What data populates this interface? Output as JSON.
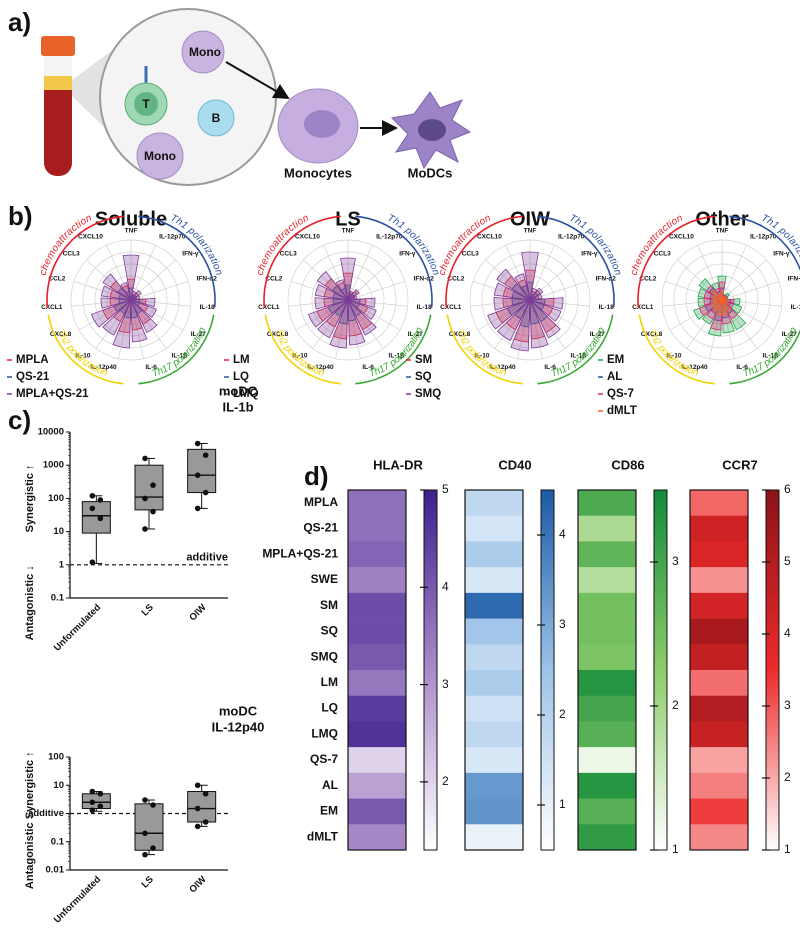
{
  "panel_labels": [
    "a)",
    "b)",
    "c)",
    "d)"
  ],
  "diagram": {
    "cells": [
      "T",
      "Mono",
      "B",
      "Mono"
    ],
    "monocytes": "Monocytes",
    "modcs": "MoDCs"
  },
  "chart_data": [
    {
      "type": "rose",
      "title": "Soluble",
      "categories": [
        "TNF",
        "IL-12p70",
        "IFN-γ",
        "IFN-α2",
        "IL-18",
        "IL-27",
        "IL-1β",
        "IL-6",
        "IL-12p40",
        "IL-10",
        "CXCL8",
        "CXCL1",
        "CCL2",
        "CCL3",
        "CXCL10"
      ],
      "groups": [
        {
          "label": "chemoattraction",
          "color": "#e8202a"
        },
        {
          "label": "Th1 polarization",
          "color": "#2a4fa0"
        },
        {
          "label": "Th17 polarization",
          "color": "#3aaa35"
        },
        {
          "label": "Th2 polarization",
          "color": "#f2d200"
        }
      ],
      "rlim": [
        0,
        100
      ],
      "series": [
        {
          "name": "MPLA",
          "color": "#e8202a",
          "values": [
            35,
            10,
            15,
            10,
            25,
            30,
            45,
            50,
            55,
            40,
            50,
            35,
            35,
            40,
            25
          ]
        },
        {
          "name": "QS-21",
          "color": "#2a4fa0",
          "values": [
            20,
            8,
            10,
            8,
            15,
            15,
            25,
            30,
            30,
            25,
            30,
            20,
            20,
            25,
            15
          ]
        },
        {
          "name": "MPLA+QS-21",
          "color": "#7d3c98",
          "values": [
            75,
            15,
            20,
            15,
            40,
            45,
            60,
            70,
            80,
            65,
            70,
            50,
            50,
            55,
            30
          ]
        }
      ]
    },
    {
      "type": "rose",
      "title": "LS",
      "categories": [
        "TNF",
        "IL-12p70",
        "IFN-γ",
        "IFN-α2",
        "IL-18",
        "IL-27",
        "IL-1β",
        "IL-6",
        "IL-12p40",
        "IL-10",
        "CXCL8",
        "CXCL1",
        "CCL2",
        "CCL3",
        "CXCL10"
      ],
      "groups": [
        {
          "label": "chemoattraction",
          "color": "#e8202a"
        },
        {
          "label": "Th1 polarization",
          "color": "#2a4fa0"
        },
        {
          "label": "Th17 polarization",
          "color": "#3aaa35"
        },
        {
          "label": "Th2 polarization",
          "color": "#f2d200"
        }
      ],
      "rlim": [
        0,
        100
      ],
      "series": [
        {
          "name": "LM",
          "color": "#e8202a",
          "values": [
            45,
            12,
            18,
            12,
            30,
            35,
            55,
            60,
            65,
            50,
            55,
            40,
            40,
            45,
            30
          ]
        },
        {
          "name": "LQ",
          "color": "#2a4fa0",
          "values": [
            25,
            10,
            12,
            10,
            20,
            20,
            30,
            35,
            40,
            30,
            35,
            25,
            25,
            30,
            20
          ]
        },
        {
          "name": "LMQ",
          "color": "#7d3c98",
          "values": [
            70,
            15,
            22,
            15,
            45,
            50,
            65,
            75,
            80,
            70,
            70,
            55,
            55,
            60,
            35
          ]
        }
      ]
    },
    {
      "type": "rose",
      "title": "OIW",
      "categories": [
        "TNF",
        "IL-12p70",
        "IFN-γ",
        "IFN-α2",
        "IL-18",
        "IL-27",
        "IL-1β",
        "IL-6",
        "IL-12p40",
        "IL-10",
        "CXCL8",
        "CXCL1",
        "CCL2",
        "CCL3",
        "CXCL10"
      ],
      "groups": [
        {
          "label": "chemoattraction",
          "color": "#e8202a"
        },
        {
          "label": "Th1 polarization",
          "color": "#2a4fa0"
        },
        {
          "label": "Th17 polarization",
          "color": "#3aaa35"
        },
        {
          "label": "Th2 polarization",
          "color": "#f2d200"
        }
      ],
      "rlim": [
        0,
        100
      ],
      "series": [
        {
          "name": "SM",
          "color": "#e8202a",
          "values": [
            50,
            15,
            20,
            15,
            40,
            40,
            60,
            65,
            70,
            55,
            60,
            45,
            45,
            50,
            35
          ]
        },
        {
          "name": "SQ",
          "color": "#2a4fa0",
          "values": [
            30,
            10,
            15,
            10,
            25,
            25,
            40,
            40,
            45,
            35,
            40,
            30,
            30,
            35,
            25
          ]
        },
        {
          "name": "SMQ",
          "color": "#7d3c98",
          "values": [
            80,
            20,
            25,
            20,
            55,
            55,
            70,
            80,
            85,
            75,
            75,
            60,
            60,
            65,
            45
          ]
        }
      ]
    },
    {
      "type": "rose",
      "title": "Other",
      "categories": [
        "TNF",
        "IL-12p70",
        "IFN-γ",
        "IFN-α2",
        "IL-18",
        "IL-27",
        "IL-1β",
        "IL-6",
        "IL-12p40",
        "IL-10",
        "CXCL8",
        "CXCL1",
        "CCL2",
        "CCL3",
        "CXCL10"
      ],
      "groups": [
        {
          "label": "chemoattraction",
          "color": "#e8202a"
        },
        {
          "label": "Th1 polarization",
          "color": "#2a4fa0"
        },
        {
          "label": "Th17 polarization",
          "color": "#3aaa35"
        },
        {
          "label": "Th2 polarization",
          "color": "#f2d200"
        }
      ],
      "rlim": [
        0,
        100
      ],
      "series": [
        {
          "name": "EM",
          "color": "#1aa34a",
          "values": [
            40,
            10,
            15,
            10,
            30,
            35,
            55,
            55,
            60,
            45,
            50,
            40,
            40,
            45,
            30
          ]
        },
        {
          "name": "AL",
          "color": "#2a4fa0",
          "values": [
            20,
            8,
            10,
            8,
            15,
            15,
            25,
            30,
            35,
            25,
            30,
            20,
            20,
            25,
            15
          ]
        },
        {
          "name": "QS-7",
          "color": "#e0227a",
          "values": [
            30,
            8,
            10,
            8,
            20,
            20,
            35,
            40,
            50,
            35,
            40,
            30,
            30,
            30,
            20
          ]
        },
        {
          "name": "dMLT",
          "color": "#f26522",
          "values": [
            15,
            5,
            8,
            5,
            10,
            10,
            20,
            25,
            25,
            20,
            20,
            15,
            15,
            20,
            10
          ]
        }
      ]
    },
    {
      "type": "box",
      "title": "moDC",
      "subtitle": "IL-1b",
      "yscale": "log",
      "color": "#999999",
      "categories": [
        "Unformulated",
        "LS",
        "OIW"
      ],
      "ylim": [
        0.1,
        10000
      ],
      "yticks": [
        0.1,
        1,
        10,
        100,
        1000,
        10000
      ],
      "boxes": [
        {
          "min": 1.1,
          "q1": 9,
          "median": 30,
          "q3": 80,
          "max": 120
        },
        {
          "min": 12,
          "q1": 45,
          "median": 110,
          "q3": 1000,
          "max": 1600
        },
        {
          "min": 50,
          "q1": 150,
          "median": 500,
          "q3": 3000,
          "max": 4500
        }
      ],
      "points": [
        [
          1.2,
          25,
          50,
          90,
          120
        ],
        [
          12,
          40,
          100,
          250,
          1600
        ],
        [
          50,
          150,
          500,
          2000,
          4500
        ]
      ],
      "reference_line": {
        "value": 1,
        "label": "additive"
      },
      "annotations": [
        "Synergistic ↑",
        "Antagonistic ↓"
      ]
    },
    {
      "type": "box",
      "title": "moDC",
      "subtitle": "IL-12p40",
      "yscale": "log",
      "color": "#999999",
      "categories": [
        "Unformulated",
        "LS",
        "OIW"
      ],
      "ylim": [
        0.01,
        100
      ],
      "yticks": [
        0.01,
        0.1,
        {
          "value": 1,
          "label": "additive"
        },
        10,
        100
      ],
      "boxes": [
        {
          "min": 1.2,
          "q1": 1.5,
          "median": 2.5,
          "q3": 5,
          "max": 6
        },
        {
          "min": 0.035,
          "q1": 0.05,
          "median": 0.2,
          "q3": 2.2,
          "max": 3
        },
        {
          "min": 0.35,
          "q1": 0.5,
          "median": 1.5,
          "q3": 6,
          "max": 10
        }
      ],
      "points": [
        [
          1.3,
          1.8,
          2.5,
          5,
          6
        ],
        [
          0.035,
          0.06,
          0.2,
          2,
          3
        ],
        [
          0.35,
          0.5,
          1.5,
          5,
          10
        ]
      ],
      "reference_line": {
        "value": 1
      },
      "annotations": [
        "Synergistic ↑",
        "Antagonistic ↓"
      ]
    },
    {
      "type": "heatmap",
      "categories": [
        "MPLA",
        "QS-21",
        "MPLA+QS-21",
        "SWE",
        "SM",
        "SQ",
        "SMQ",
        "LM",
        "LQ",
        "LMQ",
        "QS-7",
        "AL",
        "EM",
        "dMLT"
      ],
      "series": [
        {
          "name": "HLA-DR",
          "colors": [
            "#ffffff",
            "#a98bc9",
            "#3d1f8f"
          ],
          "clim": [
            1.3,
            5
          ],
          "cticks": [
            2,
            3,
            4,
            5
          ],
          "values": [
            3.6,
            3.6,
            3.8,
            3.3,
            4.2,
            4.2,
            4.0,
            3.5,
            4.5,
            4.7,
            2.0,
            2.8,
            4.0,
            3.2
          ]
        },
        {
          "name": "CD40",
          "colors": [
            "#ffffff",
            "#9cc3e8",
            "#1b5aa6"
          ],
          "clim": [
            0.5,
            4.5
          ],
          "cticks": [
            1,
            2,
            3,
            4
          ],
          "values": [
            1.8,
            1.4,
            2.2,
            1.3,
            4.2,
            2.4,
            1.8,
            2.2,
            1.5,
            1.8,
            1.3,
            3.3,
            3.4,
            0.9
          ]
        },
        {
          "name": "CD86",
          "colors": [
            "#ffffff",
            "#8ccc6a",
            "#138a3a"
          ],
          "clim": [
            1,
            3.5
          ],
          "cticks": [
            1,
            2,
            3
          ],
          "values": [
            2.9,
            1.9,
            2.7,
            1.8,
            2.5,
            2.5,
            2.4,
            3.3,
            3.0,
            2.8,
            1.2,
            3.3,
            2.8,
            3.2
          ]
        },
        {
          "name": "CCR7",
          "colors": [
            "#ffffff",
            "#ee2b2b",
            "#8b1218"
          ],
          "clim": [
            1,
            6
          ],
          "cticks": [
            1,
            2,
            3,
            4,
            5,
            6
          ],
          "values": [
            2.8,
            4.3,
            4.0,
            2.3,
            4.2,
            5.3,
            4.6,
            2.7,
            5.0,
            4.5,
            2.1,
            2.5,
            3.3,
            2.4
          ]
        }
      ]
    }
  ]
}
